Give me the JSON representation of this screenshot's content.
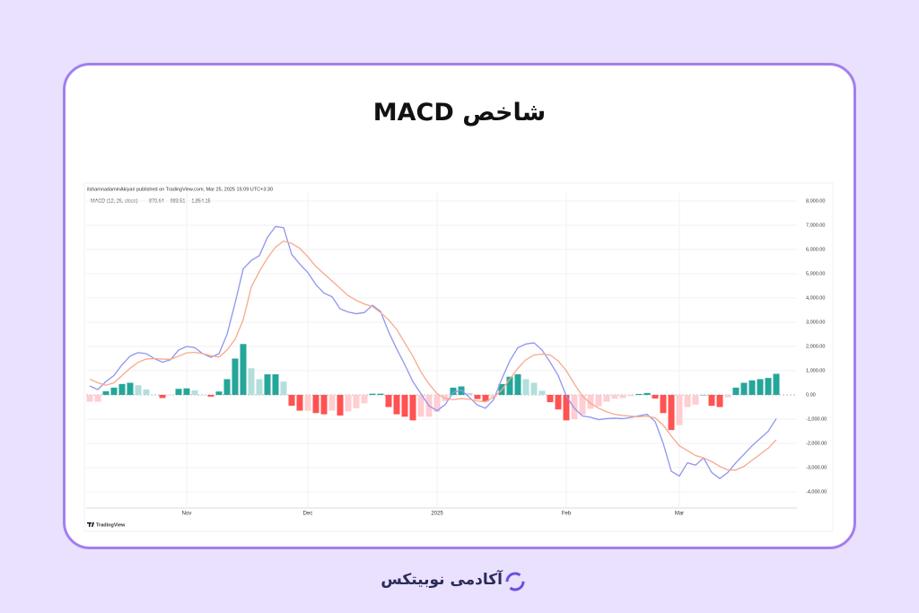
{
  "title": "شاخص MACD",
  "chart_data": {
    "type": "macd",
    "caption": "ilshamnadaminAkiyari published on TradingView.com, Mar 25, 2025 15:09 UTC+3:30",
    "legend_title": "MACD (12, 26, close)",
    "legend_values": [
      "870.64",
      "-983.51",
      "-1,854.15"
    ],
    "watermark": "TradingView",
    "categories": [
      null,
      null,
      null,
      null,
      null,
      null,
      null,
      null,
      null,
      null,
      null,
      null,
      "Nov",
      null,
      null,
      null,
      null,
      null,
      null,
      null,
      null,
      null,
      null,
      null,
      null,
      null,
      null,
      "Dec",
      null,
      null,
      null,
      null,
      null,
      null,
      null,
      null,
      null,
      null,
      null,
      null,
      null,
      null,
      null,
      "2025",
      null,
      null,
      null,
      null,
      null,
      null,
      null,
      null,
      null,
      null,
      null,
      null,
      null,
      null,
      null,
      "Feb",
      null,
      null,
      null,
      null,
      null,
      null,
      null,
      null,
      null,
      null,
      null,
      null,
      null,
      "Mar",
      null,
      null,
      null,
      null,
      null,
      null,
      null,
      null,
      null,
      null,
      null,
      null
    ],
    "series": [
      {
        "kind": "histogram",
        "colors": [
          "#26a69a",
          "#b2dfdb",
          "#ff5252",
          "#ffcdd2"
        ],
        "values": [
          -280,
          -280,
          150,
          300,
          450,
          500,
          400,
          220,
          0,
          -130,
          -20,
          250,
          270,
          190,
          0,
          -70,
          140,
          650,
          1500,
          2100,
          1100,
          650,
          850,
          850,
          550,
          -450,
          -650,
          -650,
          -750,
          -800,
          -650,
          -850,
          -680,
          -550,
          -350,
          50,
          50,
          -500,
          -800,
          -900,
          -1050,
          -900,
          -900,
          -700,
          -250,
          300,
          350,
          80,
          -170,
          -270,
          -100,
          450,
          750,
          850,
          650,
          500,
          170,
          -300,
          -600,
          -1050,
          -1000,
          -820,
          -570,
          -470,
          -280,
          -160,
          -130,
          -50,
          40,
          80,
          -150,
          -750,
          -1450,
          -1250,
          -500,
          -400,
          0,
          -450,
          -500,
          -100,
          300,
          500,
          600,
          650,
          700,
          870
        ]
      },
      {
        "kind": "line",
        "color": "#8f95ef",
        "values": [
          370,
          220,
          550,
          800,
          1250,
          1600,
          1750,
          1700,
          1500,
          1350,
          1450,
          1850,
          2000,
          1950,
          1700,
          1550,
          1700,
          2500,
          3800,
          5200,
          5550,
          5750,
          6500,
          6950,
          6900,
          5800,
          5400,
          5050,
          4550,
          4200,
          4050,
          3550,
          3420,
          3350,
          3400,
          3700,
          3450,
          2600,
          1900,
          1250,
          550,
          50,
          -450,
          -650,
          -400,
          100,
          200,
          -100,
          -420,
          -550,
          -200,
          650,
          1400,
          1950,
          2100,
          2150,
          1850,
          1350,
          800,
          -50,
          -550,
          -870,
          -920,
          -1020,
          -980,
          -960,
          -980,
          -930,
          -860,
          -800,
          -1100,
          -2000,
          -3150,
          -3350,
          -2800,
          -2900,
          -2600,
          -3200,
          -3450,
          -3200,
          -2800,
          -2450,
          -2100,
          -1800,
          -1500,
          -980
        ]
      },
      {
        "kind": "line",
        "color": "#f7a98c",
        "values": [
          650,
          500,
          400,
          500,
          800,
          1100,
          1350,
          1480,
          1500,
          1480,
          1470,
          1600,
          1730,
          1760,
          1700,
          1620,
          1560,
          1850,
          2300,
          3100,
          4450,
          5100,
          5650,
          6100,
          6350,
          6250,
          6050,
          5700,
          5300,
          5000,
          4700,
          4400,
          4100,
          3900,
          3750,
          3650,
          3400,
          3100,
          2700,
          2150,
          1600,
          950,
          450,
          50,
          -150,
          -200,
          -150,
          -180,
          -250,
          -280,
          -100,
          200,
          650,
          1100,
          1450,
          1650,
          1680,
          1650,
          1400,
          1000,
          450,
          -50,
          -350,
          -550,
          -700,
          -800,
          -850,
          -880,
          -900,
          -880,
          -950,
          -1250,
          -1700,
          -2100,
          -2300,
          -2500,
          -2600,
          -2750,
          -2950,
          -3100,
          -3100,
          -2950,
          -2700,
          -2450,
          -2200,
          -1850
        ]
      }
    ],
    "ylim": [
      -4700,
      8200
    ],
    "yticks": [
      {
        "value": 8000,
        "label": "8,000.00"
      },
      {
        "value": 7000,
        "label": "7,000.00"
      },
      {
        "value": 6000,
        "label": "6,000.00"
      },
      {
        "value": 5000,
        "label": "5,000.00"
      },
      {
        "value": 4000,
        "label": "4,000.00"
      },
      {
        "value": 3000,
        "label": "3,000.00"
      },
      {
        "value": 2000,
        "label": "2,000.00"
      },
      {
        "value": 1000,
        "label": "1,000.00"
      },
      {
        "value": 0,
        "label": "0.00"
      },
      {
        "value": -1000,
        "label": "-1,000.00"
      },
      {
        "value": -2000,
        "label": "-2,000.00"
      },
      {
        "value": -3000,
        "label": "-3,000.00"
      },
      {
        "value": -4000,
        "label": "-4,000.00"
      }
    ],
    "grid": true
  },
  "footer": {
    "brand": "آکادمی نوبیتکس"
  }
}
